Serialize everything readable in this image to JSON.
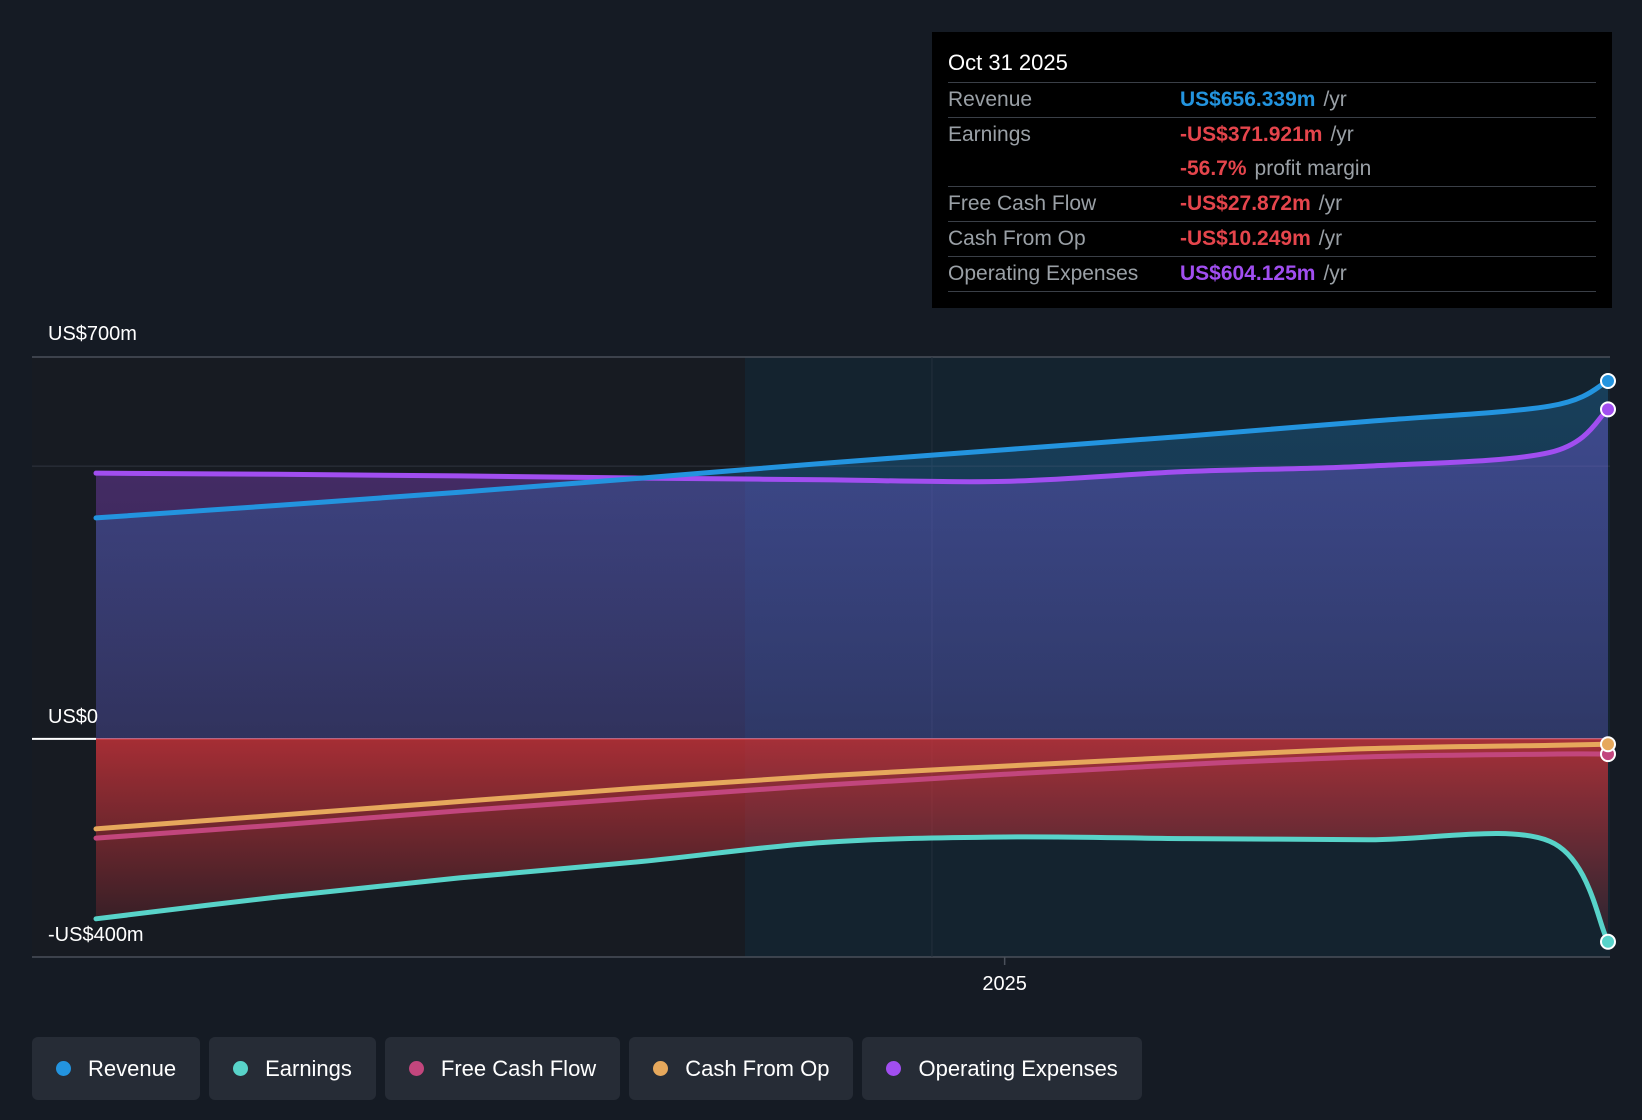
{
  "chart_data": {
    "type": "line",
    "x_tick_labels": [
      "2025"
    ],
    "y_tick_labels": [
      "US$700m",
      "US$0",
      "-US$400m"
    ],
    "ylim": [
      -400,
      700
    ],
    "x": [
      2023.75,
      2024.0,
      2024.25,
      2024.5,
      2024.75,
      2025.0,
      2025.25,
      2025.5,
      2025.75,
      2025.83
    ],
    "series": [
      {
        "name": "Revenue",
        "color": "#2394df",
        "values": [
          405,
          428,
          452,
          478,
          505,
          530,
          555,
          582,
          610,
          656
        ]
      },
      {
        "name": "Operating Expenses",
        "color": "#a14ef0",
        "values": [
          487,
          485,
          482,
          478,
          475,
          472,
          490,
          500,
          525,
          604
        ]
      },
      {
        "name": "Cash From Op",
        "color": "#e6a85c",
        "values": [
          -165,
          -140,
          -115,
          -90,
          -68,
          -50,
          -33,
          -18,
          -12,
          -10
        ]
      },
      {
        "name": "Free Cash Flow",
        "color": "#c2467d",
        "values": [
          -182,
          -158,
          -132,
          -108,
          -85,
          -65,
          -47,
          -33,
          -28,
          -28
        ]
      },
      {
        "name": "Earnings",
        "color": "#58d3c9",
        "values": [
          -330,
          -290,
          -255,
          -225,
          -190,
          -180,
          -183,
          -185,
          -188,
          -372
        ]
      }
    ],
    "past_future_split_x": 2024.9
  },
  "tooltip": {
    "date": "Oct 31 2025",
    "rows": [
      {
        "label": "Revenue",
        "value": "US$656.339m",
        "unit": "/yr",
        "color": "#2394df"
      },
      {
        "label": "Earnings",
        "value": "-US$371.921m",
        "unit": "/yr",
        "color": "#e5454c"
      },
      {
        "label": "",
        "value": "-56.7%",
        "unit": "profit margin",
        "color": "#e5454c"
      },
      {
        "label": "Free Cash Flow",
        "value": "-US$27.872m",
        "unit": "/yr",
        "color": "#e5454c"
      },
      {
        "label": "Cash From Op",
        "value": "-US$10.249m",
        "unit": "/yr",
        "color": "#e5454c"
      },
      {
        "label": "Operating Expenses",
        "value": "US$604.125m",
        "unit": "/yr",
        "color": "#a14ef0"
      }
    ]
  },
  "legend": [
    {
      "label": "Revenue",
      "color": "#2394df"
    },
    {
      "label": "Earnings",
      "color": "#58d3c9"
    },
    {
      "label": "Free Cash Flow",
      "color": "#c2467d"
    },
    {
      "label": "Cash From Op",
      "color": "#e6a85c"
    },
    {
      "label": "Operating Expenses",
      "color": "#a14ef0"
    }
  ]
}
